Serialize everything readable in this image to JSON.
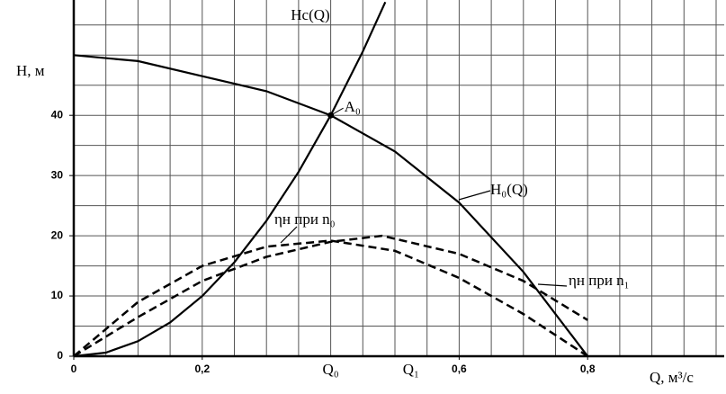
{
  "chart_data": {
    "type": "line",
    "ylabel": "H, м",
    "xlabel": "Q, м³/с",
    "xlim": [
      0,
      1.0
    ],
    "ylim": [
      0,
      59
    ],
    "xticks": [
      0,
      {
        "value": 0.2,
        "label": "0,2"
      },
      {
        "value": 0.6,
        "label": "0,6"
      },
      {
        "value": 0.8,
        "label": "0,8"
      }
    ],
    "yticks": [
      0,
      10,
      20,
      30,
      40
    ],
    "grid": true,
    "xgrid": [
      0.05,
      0.1,
      0.15,
      0.2,
      0.25,
      0.3,
      0.35,
      0.4,
      0.45,
      0.5,
      0.55,
      0.6,
      0.65,
      0.7,
      0.75,
      0.8,
      0.85,
      0.9,
      0.95,
      1.0
    ],
    "ygrid": [
      5,
      10,
      15,
      20,
      25,
      30,
      35,
      40,
      45,
      50,
      55
    ],
    "markers": [
      {
        "label": "Q₀",
        "x": 0.4
      },
      {
        "label": "Q₁",
        "x": 0.525
      }
    ],
    "points": [
      {
        "label": "A₀",
        "x": 0.4,
        "y": 40
      }
    ],
    "series": [
      {
        "name": "Hc(Q)",
        "color": "#000000",
        "dash": false,
        "x": [
          0,
          0.05,
          0.1,
          0.15,
          0.2,
          0.25,
          0.3,
          0.35,
          0.4,
          0.45,
          0.485
        ],
        "values": [
          0,
          0.6,
          2.5,
          5.6,
          10,
          15.6,
          22.5,
          30.6,
          40,
          50.6,
          58.8
        ]
      },
      {
        "name": "H₀(Q)",
        "color": "#000000",
        "dash": false,
        "x": [
          0,
          0.1,
          0.2,
          0.3,
          0.4,
          0.5,
          0.6,
          0.7,
          0.8
        ],
        "values": [
          50,
          49,
          46.5,
          44,
          40,
          34,
          25.5,
          14,
          0
        ]
      },
      {
        "name": "ηн при n₀",
        "color": "#000000",
        "dash": true,
        "x": [
          0,
          0.1,
          0.2,
          0.3,
          0.4,
          0.5,
          0.6,
          0.7,
          0.8
        ],
        "values": [
          0,
          9,
          15,
          18.2,
          19.2,
          17.5,
          13,
          7,
          0
        ]
      },
      {
        "name": "ηн при n₁",
        "color": "#000000",
        "dash": true,
        "x": [
          0,
          0.1,
          0.2,
          0.3,
          0.4,
          0.48,
          0.6,
          0.7,
          0.8
        ],
        "values": [
          0,
          6.5,
          12.5,
          16.5,
          19,
          20,
          17,
          12.5,
          6
        ]
      }
    ]
  }
}
